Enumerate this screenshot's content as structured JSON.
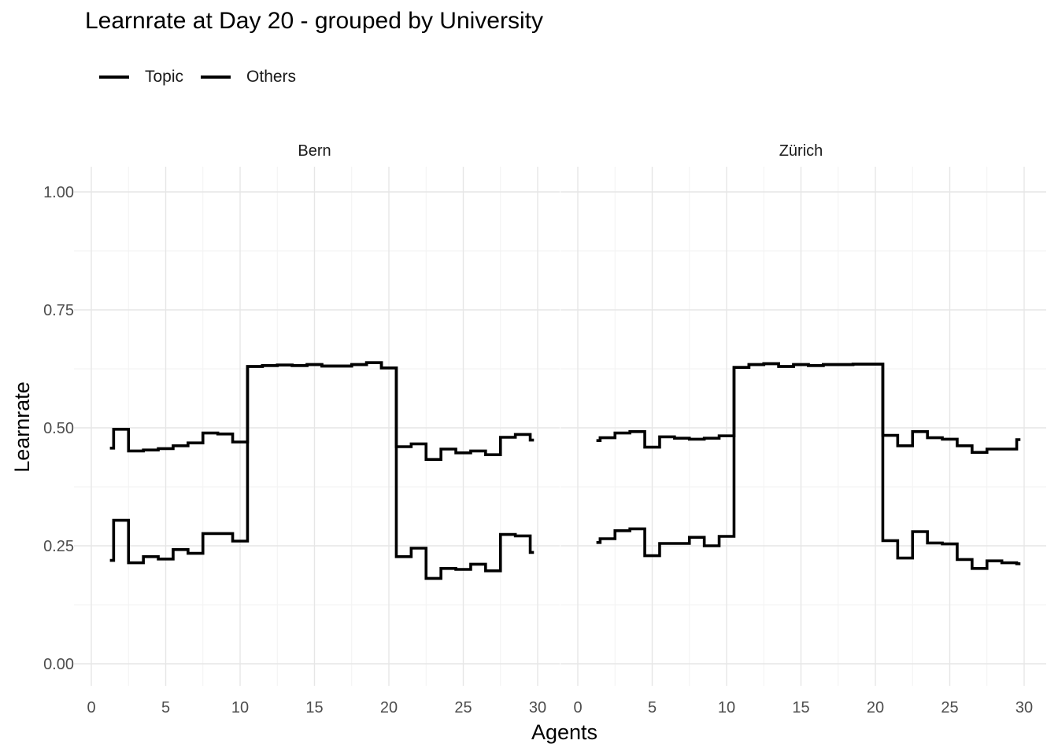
{
  "chart_data": {
    "type": "line",
    "step": "hv",
    "title": "Learnrate at Day 20 - grouped by University",
    "xlabel": "Agents",
    "ylabel": "Learnrate",
    "xlim": [
      0,
      30
    ],
    "ylim": [
      0,
      1
    ],
    "x_ticks": [
      0,
      5,
      10,
      15,
      20,
      25,
      30
    ],
    "y_ticks": [
      0,
      0.25,
      0.5,
      0.75,
      1
    ],
    "y_tick_labels": [
      "0.00",
      "0.25",
      "0.50",
      "0.75",
      "1.00"
    ],
    "grid": true,
    "legend_position": "top-left",
    "line_color": "#000000",
    "legend": [
      {
        "label": "Topic"
      },
      {
        "label": "Others"
      }
    ],
    "facets": [
      {
        "label": "Bern",
        "series": [
          {
            "name": "Topic",
            "x": [
              1.25,
              1.5,
              2.5,
              3.5,
              4.5,
              5.5,
              6.5,
              7.5,
              8.5,
              9.5,
              10.5,
              11.5,
              12.5,
              13.5,
              14.5,
              15.5,
              16.5,
              17.5,
              18.5,
              19.5,
              20.5,
              21.5,
              22.5,
              23.5,
              24.5,
              25.5,
              26.5,
              27.5,
              28.5,
              29.5,
              29.75
            ],
            "y": [
              0.457,
              0.497,
              0.451,
              0.453,
              0.456,
              0.462,
              0.468,
              0.489,
              0.487,
              0.47,
              0.63,
              0.632,
              0.633,
              0.632,
              0.634,
              0.631,
              0.631,
              0.634,
              0.638,
              0.627,
              0.46,
              0.466,
              0.433,
              0.455,
              0.447,
              0.451,
              0.443,
              0.48,
              0.486,
              0.474,
              0.474
            ]
          },
          {
            "name": "Others",
            "x": [
              1.25,
              1.5,
              2.5,
              3.5,
              4.5,
              5.5,
              6.5,
              7.5,
              8.5,
              9.5,
              10.5,
              11.5,
              12.5,
              13.5,
              14.5,
              15.5,
              16.5,
              17.5,
              18.5,
              19.5,
              20.5,
              21.5,
              22.5,
              23.5,
              24.5,
              25.5,
              26.5,
              27.5,
              28.5,
              29.5,
              29.75
            ],
            "y": [
              0.219,
              0.304,
              0.214,
              0.227,
              0.222,
              0.242,
              0.234,
              0.276,
              0.276,
              0.26,
              0.63,
              0.632,
              0.633,
              0.632,
              0.634,
              0.631,
              0.631,
              0.634,
              0.638,
              0.627,
              0.227,
              0.245,
              0.181,
              0.202,
              0.2,
              0.211,
              0.197,
              0.274,
              0.271,
              0.236,
              0.236
            ]
          }
        ]
      },
      {
        "label": "Zürich",
        "series": [
          {
            "name": "Topic",
            "x": [
              1.25,
              1.5,
              2.5,
              3.5,
              4.5,
              5.5,
              6.5,
              7.5,
              8.5,
              9.5,
              10.5,
              11.5,
              12.5,
              13.5,
              14.5,
              15.5,
              16.5,
              17.5,
              18.5,
              19.5,
              20.5,
              21.5,
              22.5,
              23.5,
              24.5,
              25.5,
              26.5,
              27.5,
              28.5,
              29.5,
              29.75
            ],
            "y": [
              0.473,
              0.479,
              0.489,
              0.492,
              0.459,
              0.481,
              0.478,
              0.476,
              0.478,
              0.483,
              0.628,
              0.634,
              0.636,
              0.63,
              0.634,
              0.632,
              0.634,
              0.634,
              0.635,
              0.635,
              0.484,
              0.462,
              0.492,
              0.479,
              0.476,
              0.462,
              0.448,
              0.455,
              0.455,
              0.475,
              0.475
            ]
          },
          {
            "name": "Others",
            "x": [
              1.25,
              1.5,
              2.5,
              3.5,
              4.5,
              5.5,
              6.5,
              7.5,
              8.5,
              9.5,
              10.5,
              11.5,
              12.5,
              13.5,
              14.5,
              15.5,
              16.5,
              17.5,
              18.5,
              19.5,
              20.5,
              21.5,
              22.5,
              23.5,
              24.5,
              25.5,
              26.5,
              27.5,
              28.5,
              29.5,
              29.75
            ],
            "y": [
              0.257,
              0.265,
              0.282,
              0.286,
              0.229,
              0.255,
              0.255,
              0.268,
              0.25,
              0.27,
              0.628,
              0.634,
              0.636,
              0.63,
              0.634,
              0.632,
              0.634,
              0.634,
              0.635,
              0.635,
              0.261,
              0.224,
              0.28,
              0.256,
              0.254,
              0.221,
              0.202,
              0.218,
              0.214,
              0.212,
              0.212
            ]
          }
        ]
      }
    ]
  }
}
